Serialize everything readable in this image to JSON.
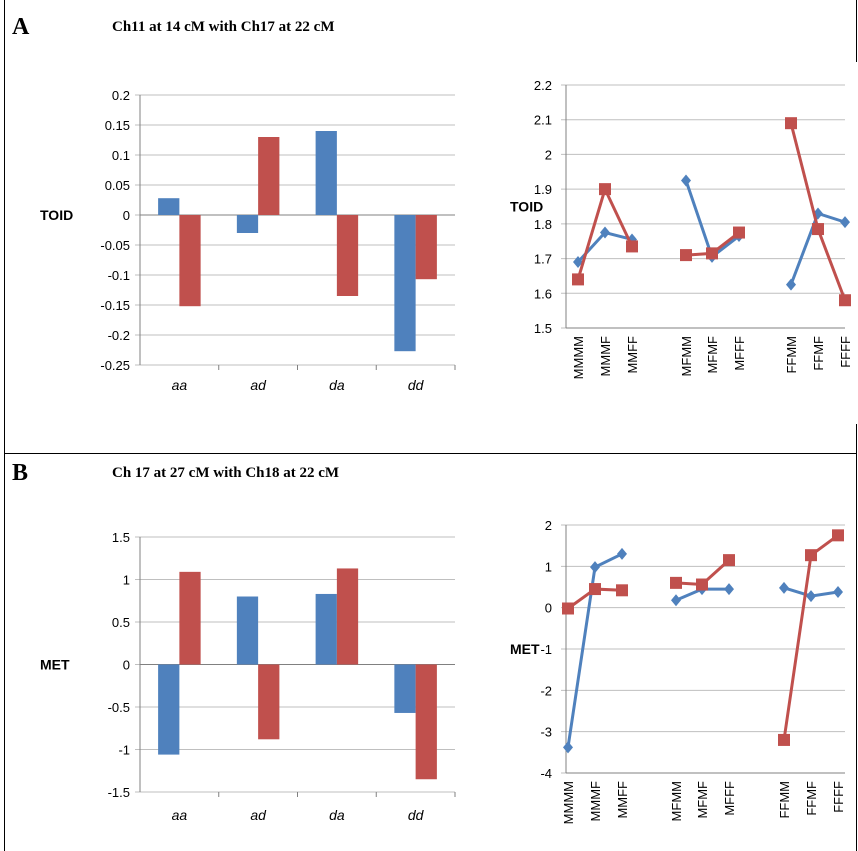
{
  "panels": [
    {
      "letter": "A",
      "title": "Ch11 at 14 cM with Ch17 at 22 cM"
    },
    {
      "letter": "B",
      "title": "Ch 17 at 27 cM with Ch18 at 22 cM"
    }
  ],
  "colors": {
    "blue": "#4F81BD",
    "red": "#C0504D",
    "grid": "#BFBFBF",
    "axis": "#808080"
  },
  "chart_data": [
    {
      "id": "A-bar",
      "type": "bar",
      "ylabel": "TOID",
      "categories": [
        "aa",
        "ad",
        "da",
        "dd"
      ],
      "ylim": [
        -0.25,
        0.2
      ],
      "yticks": [
        0.2,
        0.15,
        0.1,
        0.05,
        0,
        -0.05,
        -0.1,
        -0.15,
        -0.2,
        -0.25
      ],
      "ytick_labels": [
        "0.2",
        "0.15",
        "0.1",
        "0.05",
        "0",
        "-0.05",
        "-0.1",
        "-0.15",
        "-0.2",
        "-0.25"
      ],
      "grid": true,
      "series": [
        {
          "color": "#4F81BD",
          "values": [
            0.028,
            -0.03,
            0.14,
            -0.227
          ]
        },
        {
          "color": "#C0504D",
          "values": [
            -0.152,
            0.13,
            -0.135,
            -0.107
          ]
        }
      ]
    },
    {
      "id": "A-line",
      "type": "line",
      "ylabel": "TOID",
      "categories": [
        "MMMM",
        "MMMF",
        "MMFF",
        "MFMM",
        "MFMF",
        "MFFF",
        "FFMM",
        "FFMF",
        "FFFF"
      ],
      "ylim": [
        1.5,
        2.2
      ],
      "yticks": [
        2.2,
        2.1,
        2,
        1.9,
        1.8,
        1.7,
        1.6,
        1.5
      ],
      "ytick_labels": [
        "2.2",
        "2.1",
        "2",
        "1.9",
        "1.8",
        "1.7",
        "1.6",
        "1.5"
      ],
      "grid": true,
      "series": [
        {
          "color": "#4F81BD",
          "marker": "diamond",
          "values": [
            1.69,
            1.775,
            1.755,
            1.925,
            1.705,
            1.765,
            1.625,
            1.83,
            1.805
          ]
        },
        {
          "color": "#C0504D",
          "marker": "square",
          "values": [
            1.64,
            1.9,
            1.735,
            1.71,
            1.715,
            1.775,
            2.09,
            1.785,
            1.58
          ]
        }
      ]
    },
    {
      "id": "B-bar",
      "type": "bar",
      "ylabel": "MET",
      "categories": [
        "aa",
        "ad",
        "da",
        "dd"
      ],
      "ylim": [
        -1.5,
        1.5
      ],
      "yticks": [
        1.5,
        1,
        0.5,
        0,
        -0.5,
        -1,
        -1.5
      ],
      "ytick_labels": [
        "1.5",
        "1",
        "0.5",
        "0",
        "-0.5",
        "-1",
        "-1.5"
      ],
      "grid": true,
      "series": [
        {
          "color": "#4F81BD",
          "values": [
            -1.06,
            0.8,
            0.83,
            -0.57
          ]
        },
        {
          "color": "#C0504D",
          "values": [
            1.09,
            -0.88,
            1.13,
            -1.35
          ]
        }
      ]
    },
    {
      "id": "B-line",
      "type": "line",
      "ylabel": "MET",
      "categories": [
        "MMMM",
        "MMMF",
        "MMFF",
        "MFMM",
        "MFMF",
        "MFFF",
        "FFMM",
        "FFMF",
        "FFFF"
      ],
      "ylim": [
        -4,
        2
      ],
      "yticks": [
        2,
        1,
        0,
        -1,
        -2,
        -3,
        -4
      ],
      "ytick_labels": [
        "2",
        "1",
        "0",
        "-1",
        "-2",
        "-3",
        "-4"
      ],
      "grid": true,
      "series": [
        {
          "color": "#4F81BD",
          "marker": "diamond",
          "values": [
            -3.38,
            0.98,
            1.3,
            0.18,
            0.45,
            0.45,
            0.48,
            0.28,
            0.38
          ]
        },
        {
          "color": "#C0504D",
          "marker": "square",
          "values": [
            -0.02,
            0.45,
            0.42,
            0.6,
            0.56,
            1.15,
            -3.2,
            1.27,
            1.75
          ]
        }
      ]
    }
  ]
}
